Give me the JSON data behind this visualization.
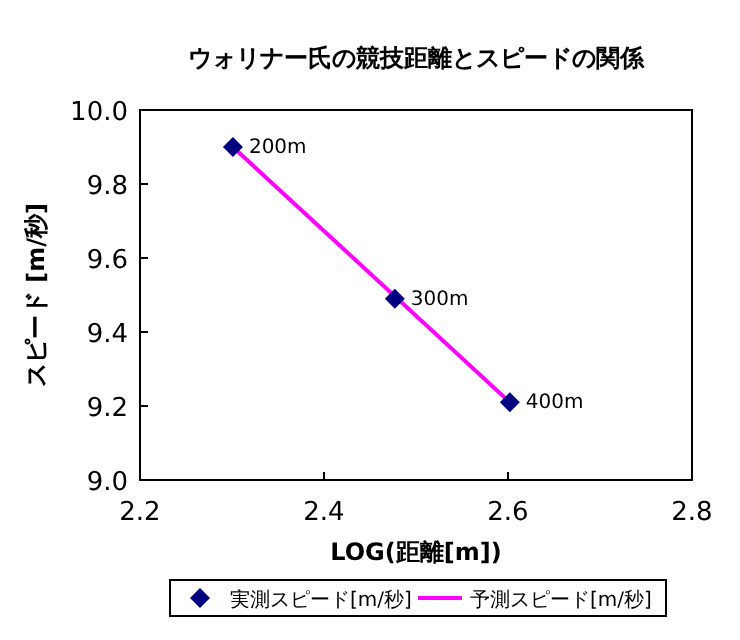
{
  "chart_data": {
    "type": "scatter",
    "title": "ウォリナー氏の競技距離とスピードの関係",
    "xlabel": "LOG(距離[m])",
    "ylabel": "スピード [m/秒]",
    "xlim": [
      2.2,
      2.8
    ],
    "xticks": [
      {
        "value": 2.2,
        "label": "2.2"
      },
      {
        "value": 2.4,
        "label": "2.4"
      },
      {
        "value": 2.6,
        "label": "2.6"
      },
      {
        "value": 2.8,
        "label": "2.8"
      }
    ],
    "ylim": [
      9.0,
      10.0
    ],
    "yticks": [
      {
        "value": 9.0,
        "label": "9.0"
      },
      {
        "value": 9.2,
        "label": "9.2"
      },
      {
        "value": 9.4,
        "label": "9.4"
      },
      {
        "value": 9.6,
        "label": "9.6"
      },
      {
        "value": 9.8,
        "label": "9.8"
      },
      {
        "value": 10.0,
        "label": "10.0"
      }
    ],
    "grid": false,
    "legend": "bottom",
    "series": [
      {
        "name": "実測スピード[m/秒]",
        "color": "#000080",
        "marker": "diamond",
        "x": [
          2.301,
          2.477,
          2.602
        ],
        "values": [
          9.9,
          9.49,
          9.21
        ]
      },
      {
        "name": "予測スピード[m/秒]",
        "type": "line",
        "color": "#ff00ff",
        "marker": "none",
        "x": [
          2.301,
          2.602
        ],
        "values": [
          9.9,
          9.21
        ]
      }
    ],
    "annotations": [
      {
        "text": "200m",
        "x": 2.301,
        "y": 9.9
      },
      {
        "text": "300m",
        "x": 2.477,
        "y": 9.49
      },
      {
        "text": "400m",
        "x": 2.602,
        "y": 9.21
      }
    ]
  }
}
